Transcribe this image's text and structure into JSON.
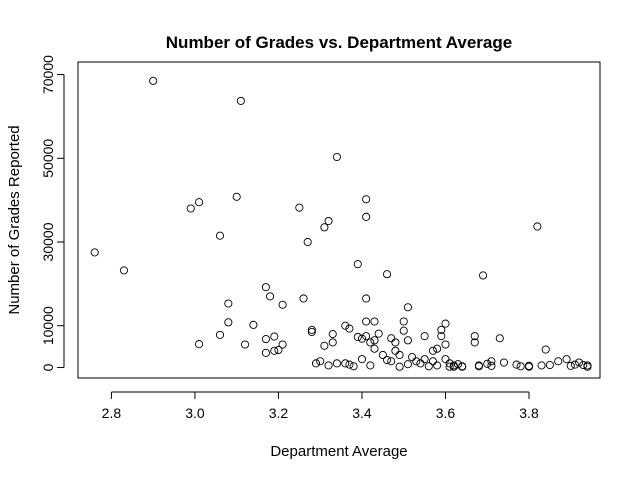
{
  "chart_data": {
    "type": "scatter",
    "title": "Number of Grades vs. Department Average",
    "xlabel": "Department Average",
    "ylabel": "Number of Grades Reported",
    "xlim": [
      2.72,
      3.97
    ],
    "ylim": [
      -2500,
      73000
    ],
    "x_ticks": [
      2.8,
      3.0,
      3.2,
      3.4,
      3.6,
      3.8
    ],
    "x_tick_labels": [
      "2.8",
      "3.0",
      "3.2",
      "3.4",
      "3.6",
      "3.8"
    ],
    "y_ticks": [
      0,
      10000,
      30000,
      50000,
      70000
    ],
    "y_tick_labels": [
      "0",
      "10000",
      "30000",
      "50000",
      "70000"
    ],
    "grid": false,
    "points": [
      [
        2.76,
        27500
      ],
      [
        2.83,
        23200
      ],
      [
        2.9,
        68500
      ],
      [
        2.99,
        38000
      ],
      [
        3.01,
        39500
      ],
      [
        3.01,
        5600
      ],
      [
        3.06,
        31500
      ],
      [
        3.06,
        7800
      ],
      [
        3.08,
        15300
      ],
      [
        3.08,
        10800
      ],
      [
        3.1,
        40800
      ],
      [
        3.11,
        63700
      ],
      [
        3.12,
        5500
      ],
      [
        3.14,
        10200
      ],
      [
        3.17,
        19200
      ],
      [
        3.17,
        6800
      ],
      [
        3.17,
        3500
      ],
      [
        3.18,
        17000
      ],
      [
        3.19,
        7400
      ],
      [
        3.19,
        4000
      ],
      [
        3.2,
        4200
      ],
      [
        3.21,
        15000
      ],
      [
        3.21,
        5500
      ],
      [
        3.25,
        38200
      ],
      [
        3.26,
        16500
      ],
      [
        3.27,
        30000
      ],
      [
        3.28,
        9000
      ],
      [
        3.28,
        8500
      ],
      [
        3.29,
        1000
      ],
      [
        3.3,
        1500
      ],
      [
        3.31,
        33500
      ],
      [
        3.31,
        5200
      ],
      [
        3.32,
        35000
      ],
      [
        3.32,
        500
      ],
      [
        3.33,
        6000
      ],
      [
        3.33,
        8000
      ],
      [
        3.34,
        50300
      ],
      [
        3.34,
        1000
      ],
      [
        3.36,
        1000
      ],
      [
        3.36,
        10000
      ],
      [
        3.37,
        700
      ],
      [
        3.37,
        9300
      ],
      [
        3.38,
        300
      ],
      [
        3.39,
        24700
      ],
      [
        3.39,
        7300
      ],
      [
        3.4,
        2000
      ],
      [
        3.4,
        6900
      ],
      [
        3.41,
        40200
      ],
      [
        3.41,
        36000
      ],
      [
        3.41,
        16500
      ],
      [
        3.41,
        11000
      ],
      [
        3.41,
        7500
      ],
      [
        3.42,
        500
      ],
      [
        3.42,
        6000
      ],
      [
        3.43,
        4500
      ],
      [
        3.43,
        6500
      ],
      [
        3.43,
        11000
      ],
      [
        3.44,
        8100
      ],
      [
        3.45,
        3000
      ],
      [
        3.46,
        22300
      ],
      [
        3.46,
        1800
      ],
      [
        3.47,
        7000
      ],
      [
        3.47,
        1500
      ],
      [
        3.48,
        6000
      ],
      [
        3.48,
        4000
      ],
      [
        3.49,
        3000
      ],
      [
        3.49,
        200
      ],
      [
        3.5,
        8800
      ],
      [
        3.5,
        11000
      ],
      [
        3.51,
        14400
      ],
      [
        3.51,
        6500
      ],
      [
        3.51,
        800
      ],
      [
        3.52,
        2500
      ],
      [
        3.53,
        1500
      ],
      [
        3.54,
        1000
      ],
      [
        3.55,
        2000
      ],
      [
        3.55,
        7500
      ],
      [
        3.56,
        300
      ],
      [
        3.57,
        4000
      ],
      [
        3.57,
        1500
      ],
      [
        3.58,
        4500
      ],
      [
        3.58,
        500
      ],
      [
        3.59,
        7500
      ],
      [
        3.59,
        9000
      ],
      [
        3.6,
        5500
      ],
      [
        3.6,
        10500
      ],
      [
        3.6,
        2000
      ],
      [
        3.61,
        1000
      ],
      [
        3.61,
        200
      ],
      [
        3.62,
        500
      ],
      [
        3.62,
        200
      ],
      [
        3.63,
        800
      ],
      [
        3.64,
        300
      ],
      [
        3.64,
        200
      ],
      [
        3.67,
        7500
      ],
      [
        3.67,
        6000
      ],
      [
        3.68,
        500
      ],
      [
        3.68,
        300
      ],
      [
        3.69,
        22000
      ],
      [
        3.7,
        900
      ],
      [
        3.71,
        1500
      ],
      [
        3.71,
        400
      ],
      [
        3.73,
        7000
      ],
      [
        3.74,
        1200
      ],
      [
        3.77,
        700
      ],
      [
        3.78,
        300
      ],
      [
        3.8,
        400
      ],
      [
        3.8,
        200
      ],
      [
        3.82,
        33700
      ],
      [
        3.83,
        500
      ],
      [
        3.84,
        4300
      ],
      [
        3.85,
        600
      ],
      [
        3.87,
        1500
      ],
      [
        3.89,
        2000
      ],
      [
        3.9,
        400
      ],
      [
        3.91,
        700
      ],
      [
        3.92,
        1200
      ],
      [
        3.93,
        600
      ],
      [
        3.94,
        200
      ],
      [
        3.94,
        500
      ]
    ]
  }
}
